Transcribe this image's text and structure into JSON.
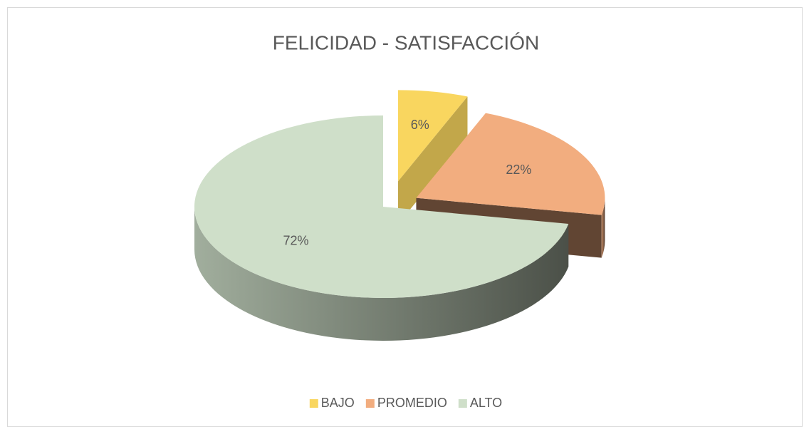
{
  "chart_data": {
    "type": "pie",
    "title": "FELICIDAD - SATISFACCIÓN",
    "categories": [
      "BAJO",
      "PROMEDIO",
      "ALTO"
    ],
    "values": [
      6,
      22,
      72
    ],
    "value_labels": [
      "6%",
      "22%",
      "72%"
    ],
    "colors": [
      "#f9d65f",
      "#f2ad7f",
      "#cfdfc9"
    ],
    "legend": "bottom"
  }
}
